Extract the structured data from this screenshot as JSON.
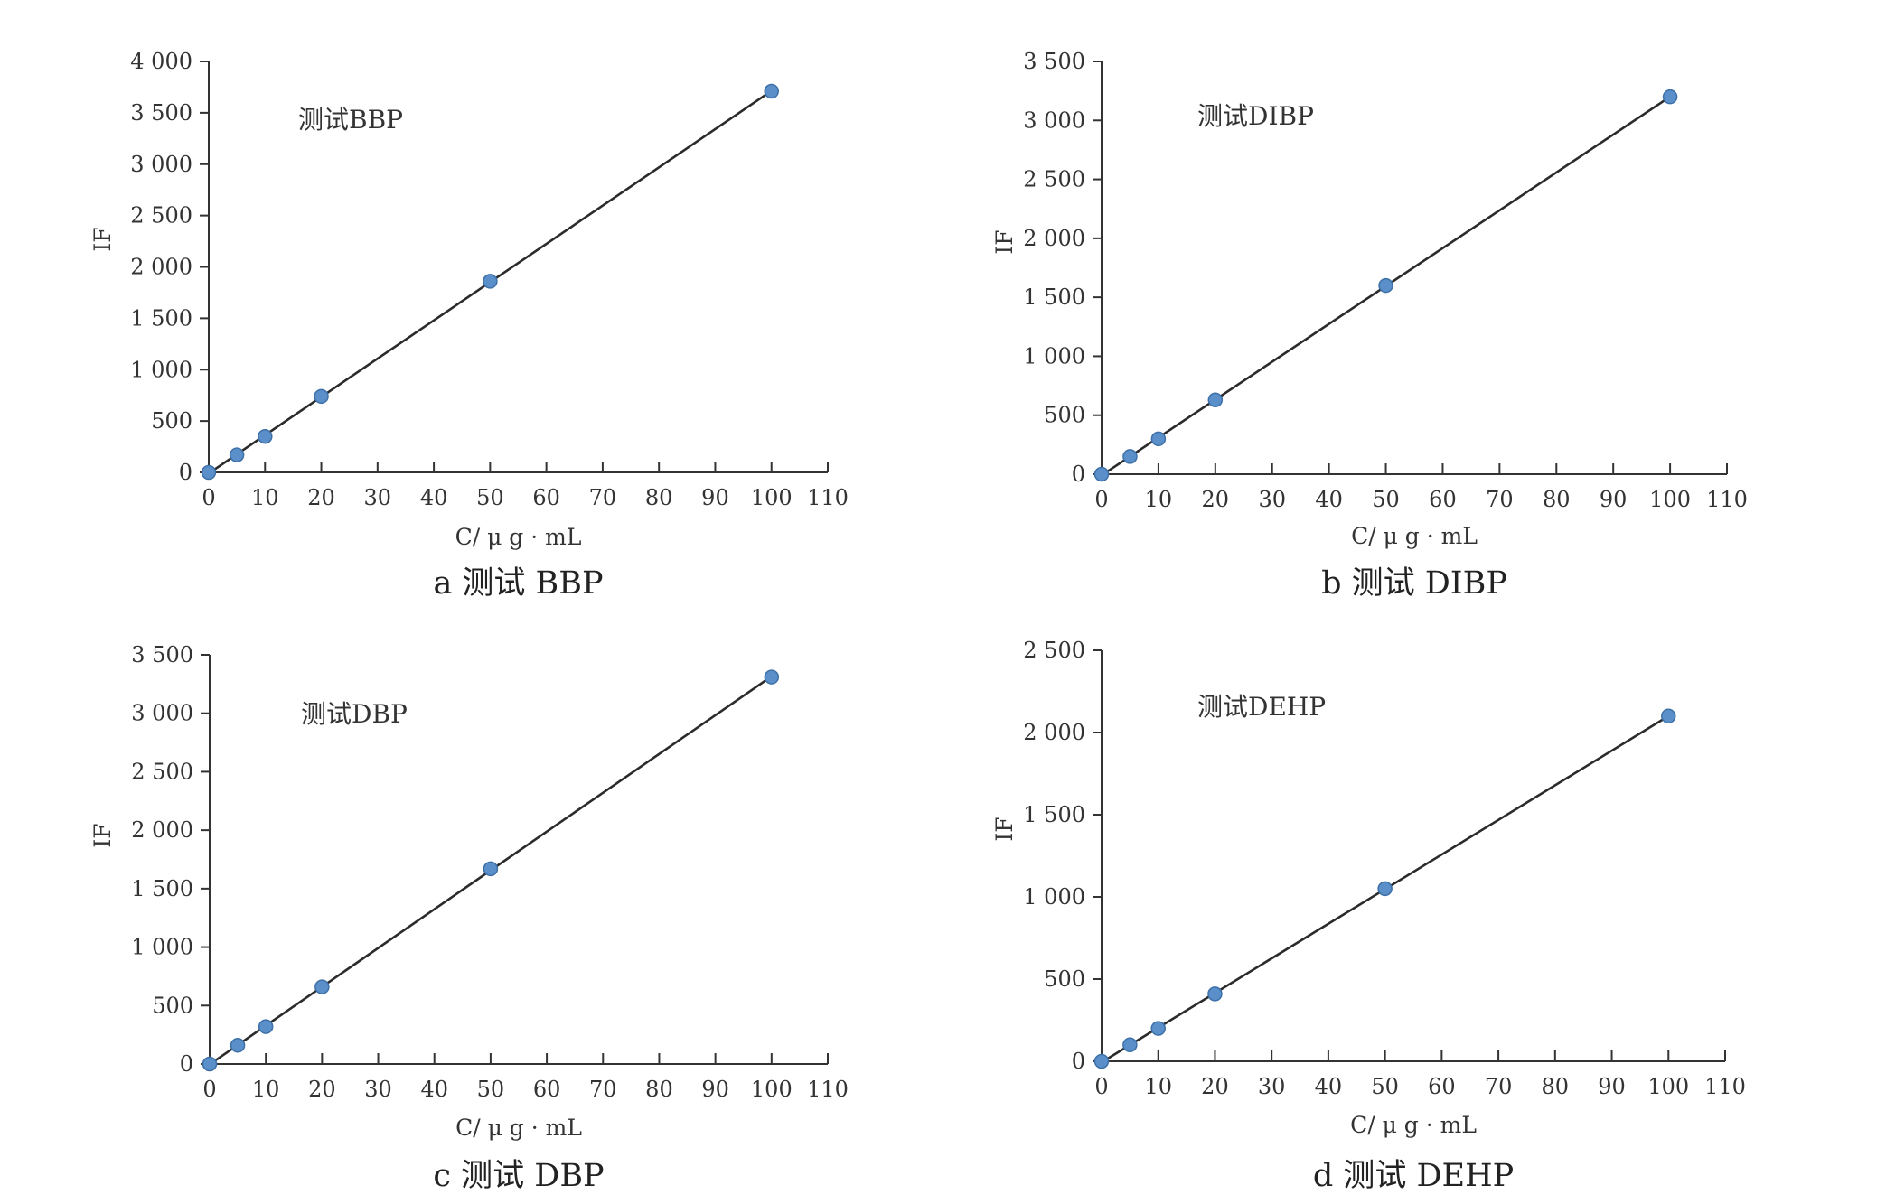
{
  "chart_data": [
    {
      "type": "scatter",
      "panel": "a",
      "title": "测试BBP",
      "caption": "a 测试 BBP",
      "xlabel": "C/ μ g · mL",
      "ylabel": "IF",
      "xlim": [
        0,
        110
      ],
      "ylim": [
        0,
        4000
      ],
      "x_ticks": [
        0,
        10,
        20,
        30,
        40,
        50,
        60,
        70,
        80,
        90,
        100,
        110
      ],
      "x_tick_labels": [
        "0",
        "10",
        "20",
        "30",
        "40",
        "50",
        "60",
        "70",
        "80",
        "90",
        "100",
        "110"
      ],
      "y_ticks": [
        0,
        500,
        1000,
        1500,
        2000,
        2500,
        3000,
        3500,
        4000
      ],
      "y_tick_labels": [
        "0",
        "500",
        "1 000",
        "1 500",
        "2 000",
        "2 500",
        "3 000",
        "3 500",
        "4 000"
      ],
      "grid": false,
      "fit_line": true,
      "series": [
        {
          "x": [
            0,
            5,
            10,
            20,
            50,
            100
          ],
          "values": [
            0,
            170,
            350,
            740,
            1860,
            3710
          ]
        }
      ]
    },
    {
      "type": "scatter",
      "panel": "b",
      "title": "测试DIBP",
      "caption": "b 测试 DIBP",
      "xlabel": "C/ μ g · mL",
      "ylabel": "IF",
      "xlim": [
        0,
        110
      ],
      "ylim": [
        0,
        3500
      ],
      "x_ticks": [
        0,
        10,
        20,
        30,
        40,
        50,
        60,
        70,
        80,
        90,
        100,
        110
      ],
      "x_tick_labels": [
        "0",
        "10",
        "20",
        "30",
        "40",
        "50",
        "60",
        "70",
        "80",
        "90",
        "100",
        "110"
      ],
      "y_ticks": [
        0,
        500,
        1000,
        1500,
        2000,
        2500,
        3000,
        3500
      ],
      "y_tick_labels": [
        "0",
        "500",
        "1 000",
        "1 500",
        "2 000",
        "2 500",
        "3 000",
        "3 500"
      ],
      "grid": false,
      "fit_line": true,
      "series": [
        {
          "x": [
            0,
            5,
            10,
            20,
            50,
            100
          ],
          "values": [
            0,
            150,
            300,
            630,
            1600,
            3200
          ]
        }
      ]
    },
    {
      "type": "scatter",
      "panel": "c",
      "title": "测试DBP",
      "caption": "c 测试 DBP",
      "xlabel": "C/ μ g · mL",
      "ylabel": "IF",
      "xlim": [
        0,
        110
      ],
      "ylim": [
        0,
        3500
      ],
      "x_ticks": [
        0,
        10,
        20,
        30,
        40,
        50,
        60,
        70,
        80,
        90,
        100,
        110
      ],
      "x_tick_labels": [
        "0",
        "10",
        "20",
        "30",
        "40",
        "50",
        "60",
        "70",
        "80",
        "90",
        "100",
        "110"
      ],
      "y_ticks": [
        0,
        500,
        1000,
        1500,
        2000,
        2500,
        3000,
        3500
      ],
      "y_tick_labels": [
        "0",
        "500",
        "1 000",
        "1 500",
        "2 000",
        "2 500",
        "3 000",
        "3 500"
      ],
      "grid": false,
      "fit_line": true,
      "series": [
        {
          "x": [
            0,
            5,
            10,
            20,
            50,
            100
          ],
          "values": [
            0,
            160,
            320,
            660,
            1670,
            3310
          ]
        }
      ]
    },
    {
      "type": "scatter",
      "panel": "d",
      "title": "测试DEHP",
      "caption": "d 测试 DEHP",
      "xlabel": "C/ μ g · mL",
      "ylabel": "IF",
      "xlim": [
        0,
        110
      ],
      "ylim": [
        0,
        2500
      ],
      "x_ticks": [
        0,
        10,
        20,
        30,
        40,
        50,
        60,
        70,
        80,
        90,
        100,
        110
      ],
      "x_tick_labels": [
        "0",
        "10",
        "20",
        "30",
        "40",
        "50",
        "60",
        "70",
        "80",
        "90",
        "100",
        "110"
      ],
      "y_ticks": [
        0,
        500,
        1000,
        1500,
        2000,
        2500
      ],
      "y_tick_labels": [
        "0",
        "500",
        "1 000",
        "1 500",
        "2 000",
        "2 500"
      ],
      "grid": false,
      "fit_line": true,
      "series": [
        {
          "x": [
            0,
            5,
            10,
            20,
            50,
            100
          ],
          "values": [
            0,
            100,
            200,
            410,
            1050,
            2100
          ]
        }
      ]
    }
  ],
  "colors": {
    "marker": "#5b8fc9",
    "marker_edge": "#3e70a8",
    "fit_line": "#2b2b2b",
    "axis": "#333333"
  }
}
